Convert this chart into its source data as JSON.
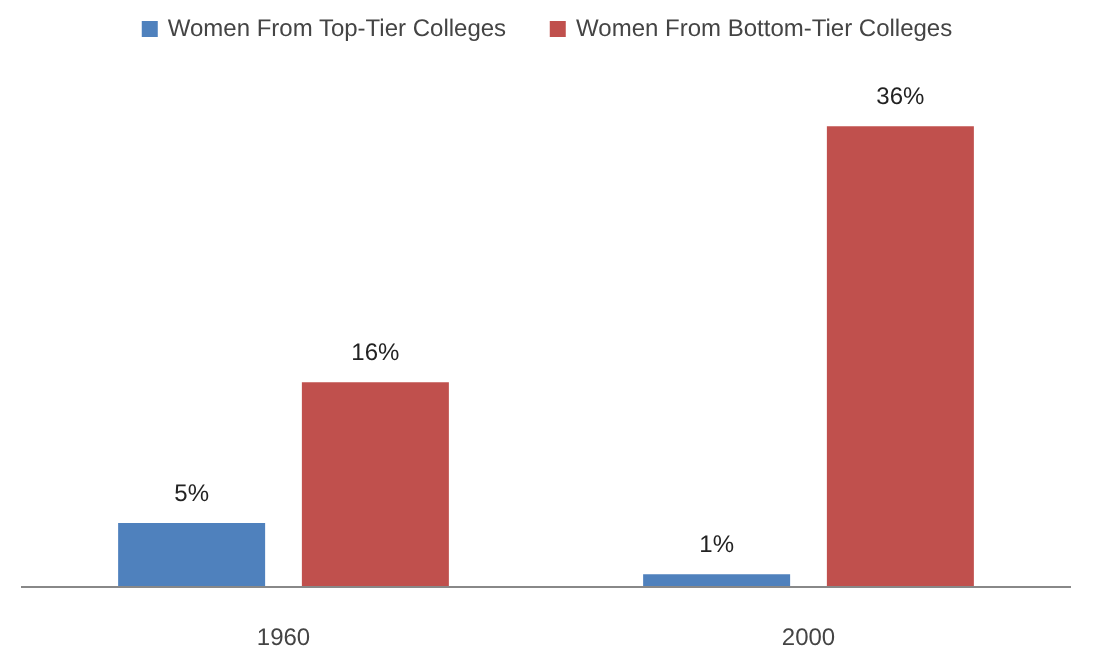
{
  "chart_data": {
    "type": "bar",
    "categories": [
      "1960",
      "2000"
    ],
    "series": [
      {
        "name": "Women From Top-Tier Colleges",
        "color": "#4f81bd",
        "values": [
          5,
          1
        ],
        "value_labels": [
          "5%",
          "1%"
        ]
      },
      {
        "name": "Women From Bottom-Tier Colleges",
        "color": "#c0504d",
        "values": [
          16,
          36
        ],
        "value_labels": [
          "16%",
          "36%"
        ]
      }
    ],
    "legend": "top"
  }
}
